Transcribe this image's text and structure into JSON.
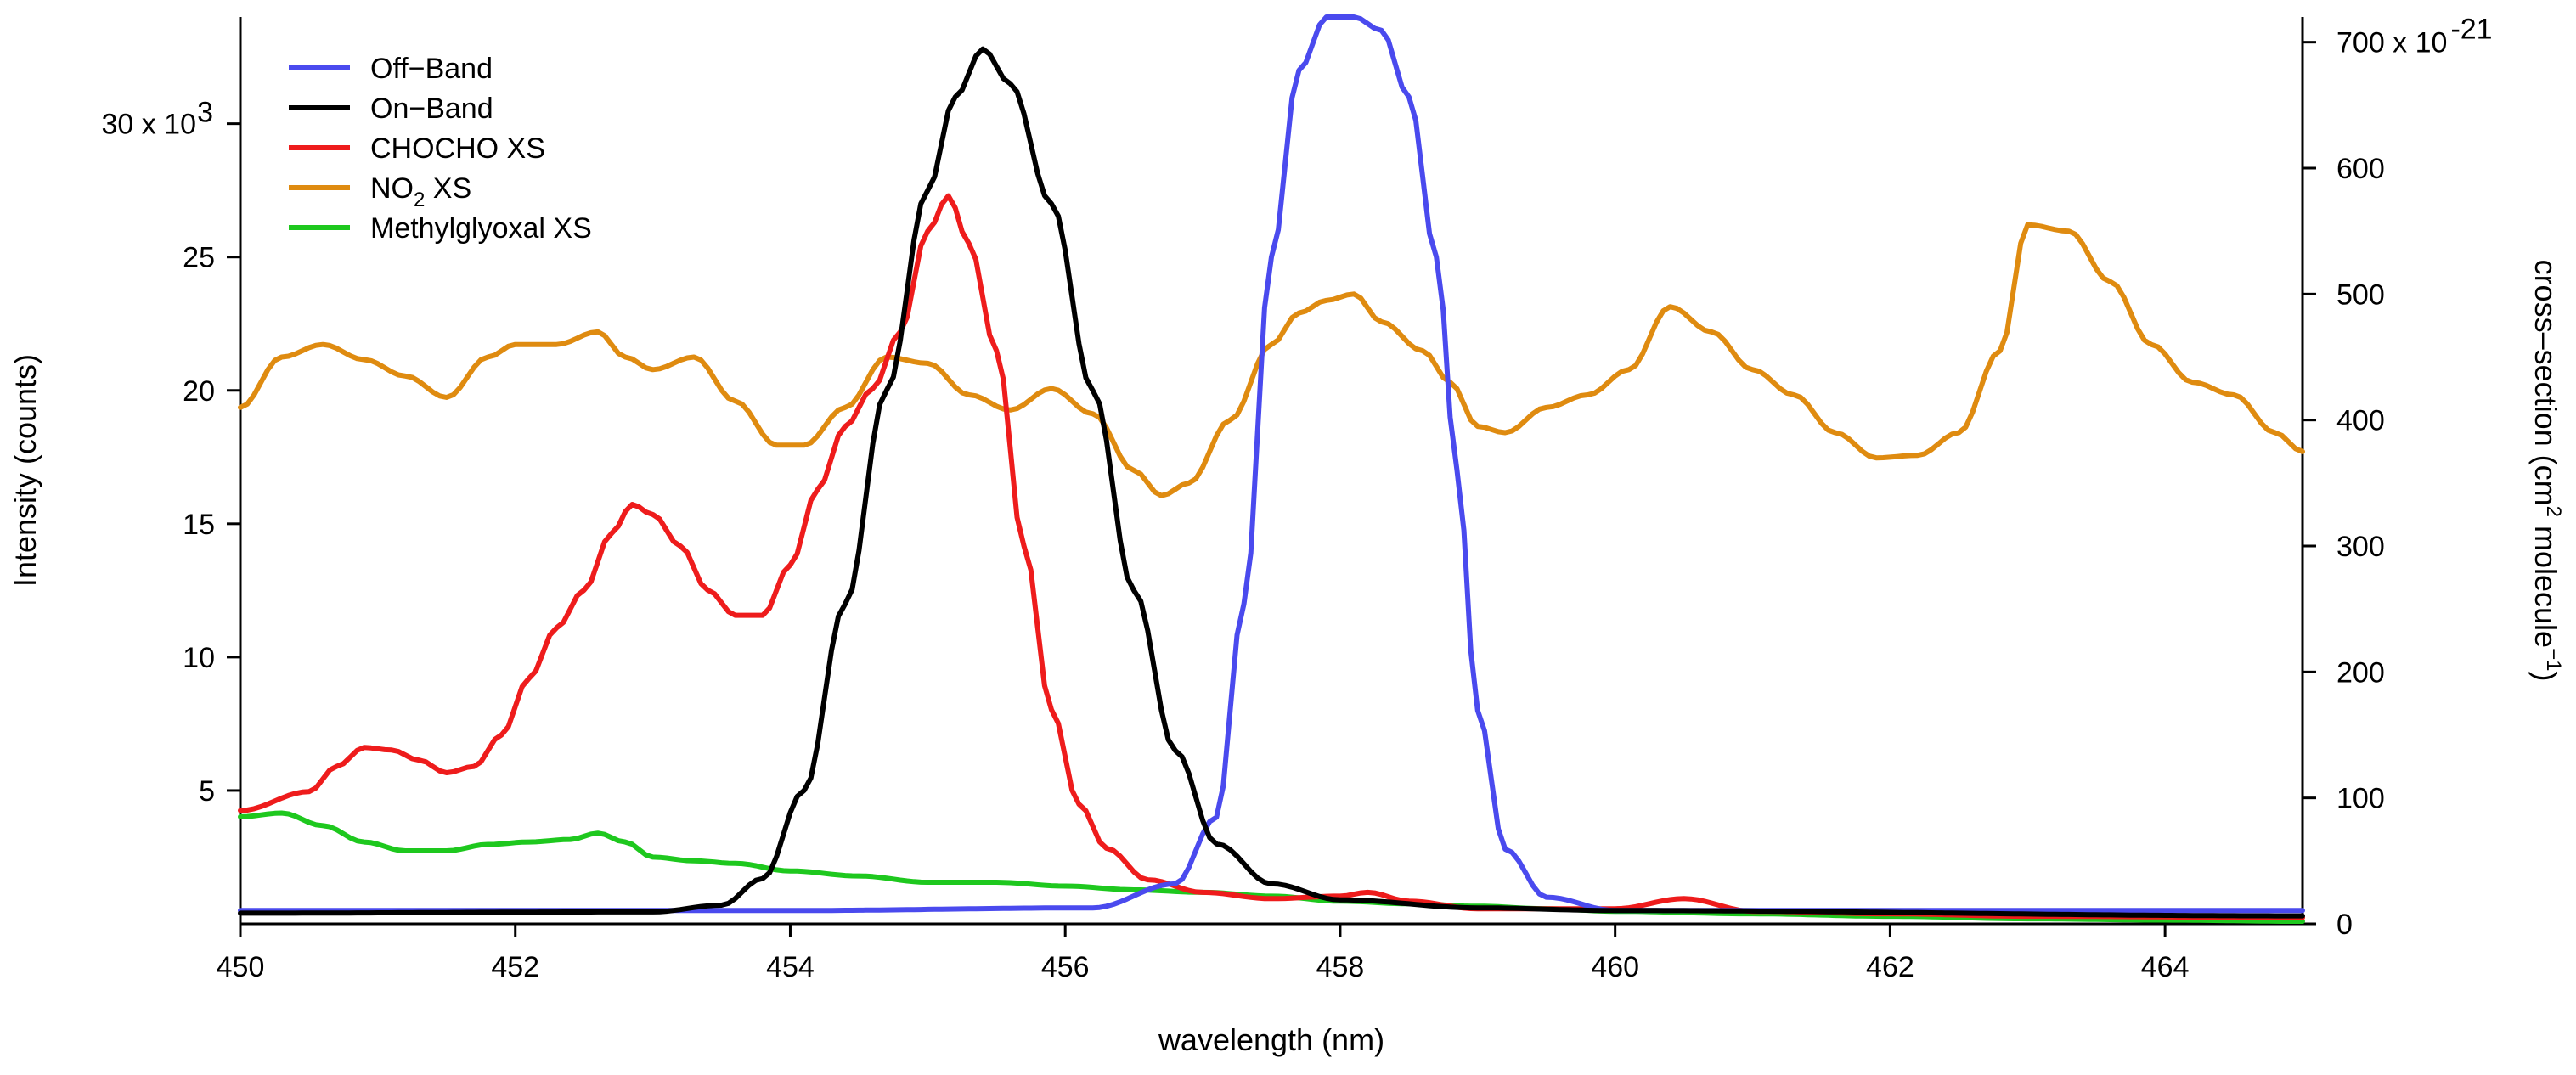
{
  "chart_data": {
    "type": "line",
    "title": "",
    "xlabel": "wavelength (nm)",
    "ylabel": "Intensity (counts)",
    "y2label": "cross–section (cm",
    "y2label_sup1": "2",
    "y2label_mid": " molecule",
    "y2label_sup2": "−1",
    "y2label_end": ")",
    "xlim": [
      450,
      465
    ],
    "ylim": [
      0,
      34000
    ],
    "y2lim": [
      0,
      720
    ],
    "x_ticks": [
      450,
      452,
      454,
      456,
      458,
      460,
      462,
      464
    ],
    "y_ticks": [
      {
        "value": 5000,
        "label": "5"
      },
      {
        "value": 10000,
        "label": "10"
      },
      {
        "value": 15000,
        "label": "15"
      },
      {
        "value": 20000,
        "label": "20"
      },
      {
        "value": 25000,
        "label": "25"
      },
      {
        "value": 30000,
        "label": "30 x 10"
      }
    ],
    "y_mult_sup": "3",
    "y2_ticks": [
      {
        "value": 0,
        "label": "0"
      },
      {
        "value": 100,
        "label": "100"
      },
      {
        "value": 200,
        "label": "200"
      },
      {
        "value": 300,
        "label": "300"
      },
      {
        "value": 400,
        "label": "400"
      },
      {
        "value": 500,
        "label": "500"
      },
      {
        "value": 600,
        "label": "600"
      },
      {
        "value": 700,
        "label": "700 x 10"
      }
    ],
    "y2_mult_sup": "-21",
    "legend_position": "top-left",
    "series": [
      {
        "name": "Off−Band",
        "name_main": "Off−Band",
        "name_sub": "",
        "name_after": "",
        "axis": "left",
        "color": "#4a4aee",
        "x": [
          450,
          454,
          456.2,
          456.8,
          457.1,
          457.3,
          457.5,
          457.7,
          457.9,
          458.1,
          458.3,
          458.5,
          458.7,
          458.85,
          459.0,
          459.2,
          459.5,
          460,
          465
        ],
        "y": [
          500,
          500,
          600,
          1500,
          4000,
          12000,
          25000,
          32000,
          34000,
          34000,
          33500,
          31000,
          25000,
          17000,
          8000,
          2800,
          1000,
          500,
          500
        ]
      },
      {
        "name": "On−Band",
        "name_main": "On−Band",
        "name_sub": "",
        "name_after": "",
        "axis": "left",
        "color": "#000000",
        "x": [
          450,
          453,
          453.5,
          453.8,
          454.1,
          454.4,
          454.7,
          455.0,
          455.2,
          455.4,
          455.6,
          455.9,
          456.2,
          456.5,
          456.8,
          457.1,
          457.5,
          458,
          459,
          460,
          465
        ],
        "y": [
          400,
          450,
          700,
          1700,
          5000,
          12000,
          20000,
          27500,
          31000,
          32800,
          31500,
          27000,
          20000,
          12500,
          6500,
          3000,
          1500,
          900,
          600,
          500,
          300
        ]
      },
      {
        "name": "CHOCHO XS",
        "name_main": "CHOCHO XS",
        "name_sub": "",
        "name_after": "",
        "axis": "right",
        "color": "#ee1c1c",
        "x": [
          450,
          450.5,
          450.7,
          450.9,
          451.1,
          451.3,
          451.5,
          451.7,
          451.9,
          452.1,
          452.3,
          452.5,
          452.7,
          452.85,
          453.0,
          453.2,
          453.4,
          453.6,
          453.8,
          454.0,
          454.2,
          454.4,
          454.6,
          454.8,
          455.0,
          455.15,
          455.3,
          455.5,
          455.7,
          455.9,
          456.1,
          456.3,
          456.6,
          457.0,
          457.5,
          458.0,
          458.2,
          458.5,
          459,
          460,
          460.5,
          461,
          462,
          463,
          465
        ],
        "y": [
          90,
          105,
          125,
          140,
          138,
          130,
          120,
          125,
          150,
          195,
          235,
          265,
          310,
          333,
          325,
          300,
          265,
          245,
          245,
          285,
          345,
          395,
          425,
          470,
          550,
          578,
          540,
          455,
          300,
          170,
          95,
          60,
          35,
          25,
          20,
          22,
          25,
          18,
          12,
          12,
          20,
          10,
          8,
          6,
          5
        ]
      },
      {
        "name": "NO2 XS",
        "name_main": "NO",
        "name_sub": "2",
        "name_after": " XS",
        "axis": "right",
        "color": "#df8b10",
        "x": [
          450,
          450.3,
          450.6,
          450.9,
          451.2,
          451.5,
          451.8,
          452.0,
          452.3,
          452.6,
          452.8,
          453.0,
          453.3,
          453.6,
          453.9,
          454.1,
          454.4,
          454.7,
          455.0,
          455.3,
          455.6,
          455.9,
          456.2,
          456.5,
          456.7,
          456.9,
          457.2,
          457.5,
          457.7,
          457.9,
          458.1,
          458.3,
          458.6,
          458.8,
          459.0,
          459.2,
          459.5,
          459.8,
          460.1,
          460.4,
          460.7,
          461.0,
          461.3,
          461.6,
          461.9,
          462.2,
          462.5,
          462.8,
          463.0,
          463.3,
          463.6,
          463.9,
          464.2,
          464.5,
          464.8,
          465.0
        ],
        "y": [
          410,
          450,
          460,
          448,
          435,
          418,
          450,
          460,
          460,
          470,
          450,
          440,
          450,
          415,
          380,
          380,
          410,
          450,
          445,
          420,
          408,
          425,
          405,
          360,
          340,
          350,
          400,
          460,
          485,
          495,
          500,
          478,
          455,
          430,
          395,
          390,
          410,
          420,
          440,
          490,
          470,
          440,
          420,
          390,
          370,
          372,
          390,
          455,
          555,
          550,
          510,
          460,
          430,
          420,
          390,
          375
        ]
      },
      {
        "name": "Methylglyoxal XS",
        "name_main": "Methylglyoxal XS",
        "name_sub": "",
        "name_after": "",
        "axis": "right",
        "color": "#1ec81e",
        "x": [
          450,
          450.3,
          450.6,
          450.9,
          451.2,
          451.5,
          451.8,
          452.1,
          452.4,
          452.6,
          452.8,
          453.0,
          453.3,
          453.6,
          454.0,
          454.5,
          455.0,
          455.5,
          456.0,
          456.5,
          457.0,
          457.5,
          458.0,
          458.5,
          459.0,
          459.5,
          460.0,
          461.0,
          462.0,
          463.0,
          464.0,
          465.0
        ],
        "y": [
          85,
          88,
          78,
          65,
          58,
          58,
          63,
          65,
          67,
          72,
          65,
          53,
          50,
          48,
          42,
          38,
          33,
          33,
          30,
          27,
          25,
          22,
          18,
          16,
          14,
          12,
          10,
          8,
          6,
          4,
          3,
          2
        ]
      }
    ]
  }
}
